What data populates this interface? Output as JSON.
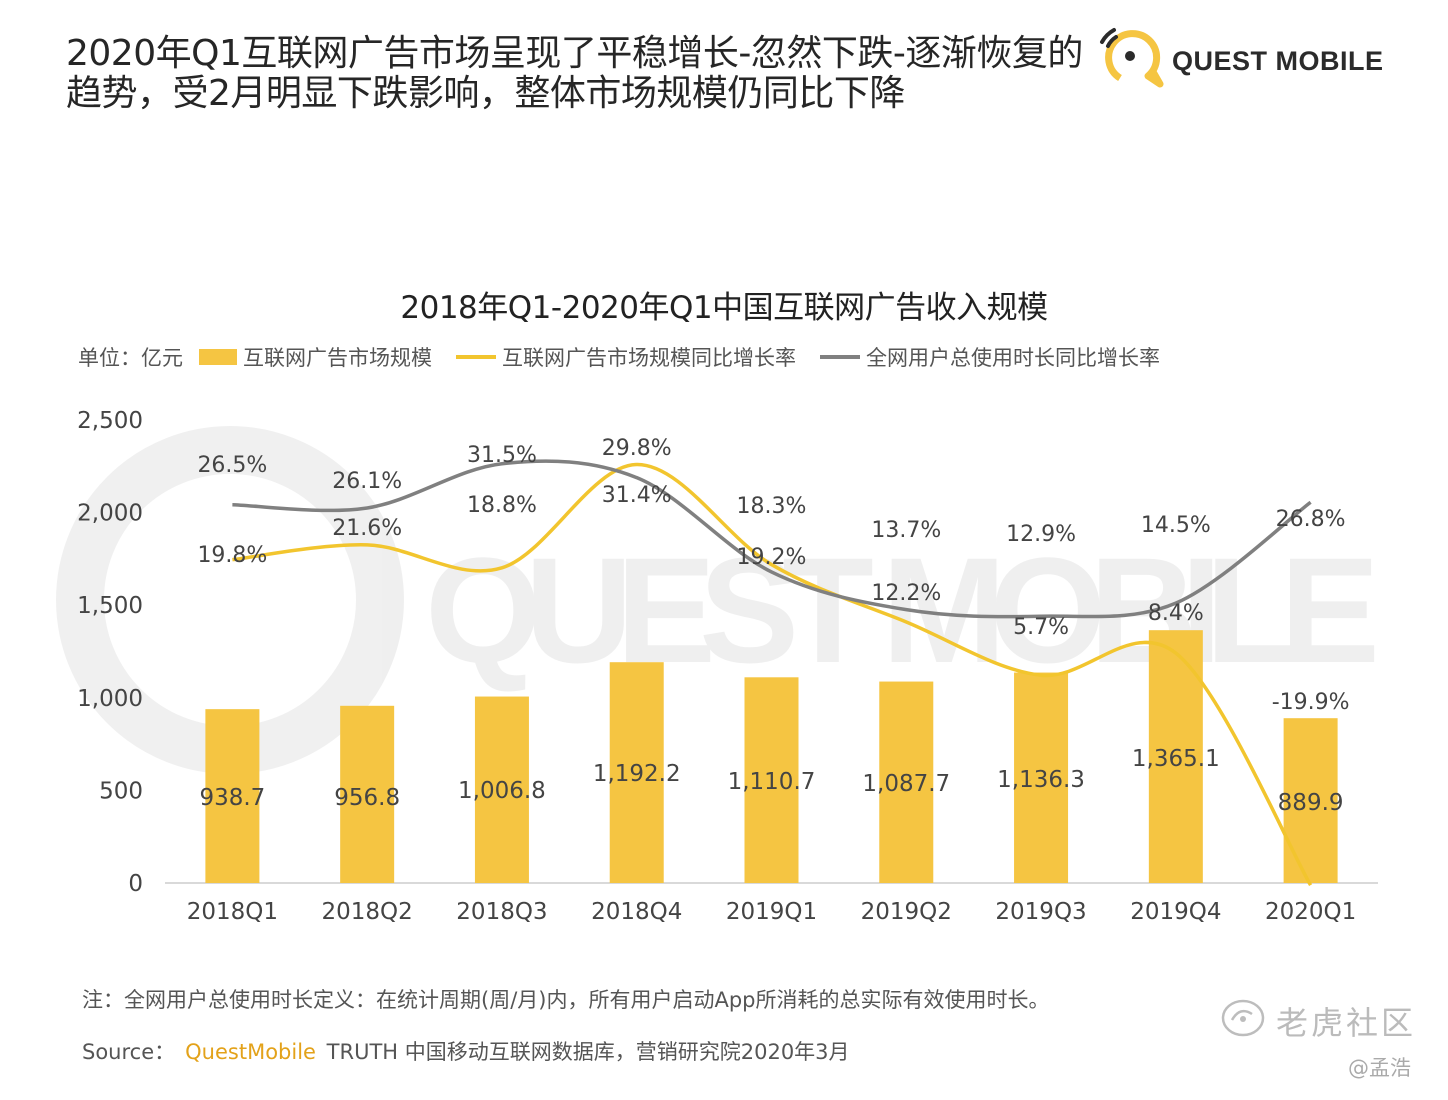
{
  "headline": {
    "line1": "2020年Q1互联网广告市场呈现了平稳增长-忽然下跌-逐渐恢复的",
    "line2": "趋势，受2月明显下跌影响，整体市场规模仍同比下降"
  },
  "brand": {
    "name": "QUEST MOBILE",
    "watermark": "QUEST MOBILE"
  },
  "colors": {
    "bar": "#f5c542",
    "yellow_line": "#f2c52e",
    "gray_line": "#808080",
    "axis": "#d9d9d9"
  },
  "legend": {
    "unit": "单位：亿元",
    "bar_label": "互联网广告市场规模",
    "line1_label": "互联网广告市场规模同比增长率",
    "line2_label": "全网用户总使用时长同比增长率"
  },
  "chart_data": {
    "type": "bar",
    "title": "2018年Q1-2020年Q1中国互联网广告收入规模",
    "categories": [
      "2018Q1",
      "2018Q2",
      "2018Q3",
      "2018Q4",
      "2019Q1",
      "2019Q2",
      "2019Q3",
      "2019Q4",
      "2020Q1"
    ],
    "ylim": [
      0,
      2500
    ],
    "yticks": [
      0,
      500,
      1000,
      1500,
      2000,
      2500
    ],
    "ytick_labels": [
      "0",
      "500",
      "1,000",
      "1,500",
      "2,000",
      "2,500"
    ],
    "series": [
      {
        "name": "互联网广告市场规模",
        "kind": "bar",
        "values": [
          938.7,
          956.8,
          1006.8,
          1192.2,
          1110.7,
          1087.7,
          1136.3,
          1365.1,
          889.9
        ],
        "labels": [
          "938.7",
          "956.8",
          "1,006.8",
          "1,192.2",
          "1,110.7",
          "1,087.7",
          "1,136.3",
          "1,365.1",
          "889.9"
        ]
      },
      {
        "name": "互联网广告市场规模同比增长率",
        "kind": "line",
        "color": "yellow",
        "values": [
          19.8,
          21.6,
          18.8,
          31.4,
          19.2,
          12.2,
          5.7,
          8.4,
          -19.9
        ],
        "labels": [
          "19.8%",
          "21.6%",
          "18.8%",
          "31.4%",
          "19.2%",
          "12.2%",
          "5.7%",
          "8.4%",
          "-19.9%"
        ]
      },
      {
        "name": "全网用户总使用时长同比增长率",
        "kind": "line",
        "color": "gray",
        "values": [
          26.5,
          26.1,
          31.5,
          29.8,
          18.3,
          13.7,
          12.9,
          14.5,
          26.8
        ],
        "labels": [
          "26.5%",
          "26.1%",
          "31.5%",
          "29.8%",
          "18.3%",
          "13.7%",
          "12.9%",
          "14.5%",
          "26.8%"
        ]
      }
    ]
  },
  "footnote": "注：全网用户总使用时长定义：在统计周期(周/月)内，所有用户启动App所消耗的总实际有效使用时长。",
  "source": {
    "prefix": "Source：",
    "brand": "QuestMobile",
    "rest": "TRUTH 中国移动互联网数据库，营销研究院2020年3月"
  },
  "corner_mark": {
    "name": "老虎社区",
    "author": "@孟浩"
  }
}
